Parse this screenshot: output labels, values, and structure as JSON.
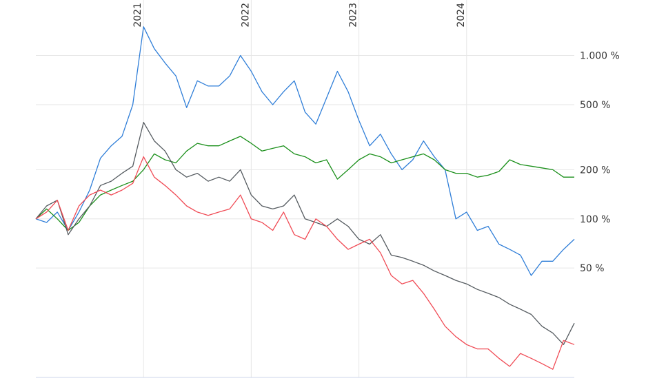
{
  "chart_data": {
    "type": "line",
    "yscale": "log",
    "grid": true,
    "xlim": [
      2020.0,
      2025.0
    ],
    "xticks": [
      2021,
      2022,
      2023,
      2024
    ],
    "ylim": [
      10.7,
      1800
    ],
    "yticks": [
      {
        "value": 1000,
        "label": "1.000 %"
      },
      {
        "value": 500,
        "label": "500 %"
      },
      {
        "value": 200,
        "label": "200 %"
      },
      {
        "value": 100,
        "label": "100 %"
      },
      {
        "value": 50,
        "label": "50 %"
      }
    ],
    "x": [
      2020.0,
      2020.1,
      2020.2,
      2020.3,
      2020.4,
      2020.5,
      2020.6,
      2020.7,
      2020.8,
      2020.9,
      2021.0,
      2021.1,
      2021.2,
      2021.3,
      2021.4,
      2021.5,
      2021.6,
      2021.7,
      2021.8,
      2021.9,
      2022.0,
      2022.1,
      2022.2,
      2022.3,
      2022.4,
      2022.5,
      2022.6,
      2022.7,
      2022.8,
      2022.9,
      2023.0,
      2023.1,
      2023.2,
      2023.3,
      2023.4,
      2023.5,
      2023.6,
      2023.7,
      2023.8,
      2023.9,
      2024.0,
      2024.1,
      2024.2,
      2024.3,
      2024.4,
      2024.5,
      2024.6,
      2024.7,
      2024.8,
      2024.9,
      2025.0
    ],
    "series": [
      {
        "color": "#2f7ed8",
        "values": [
          100,
          95,
          110,
          85,
          110,
          150,
          235,
          280,
          320,
          500,
          1500,
          1100,
          900,
          750,
          480,
          700,
          650,
          650,
          750,
          1000,
          800,
          600,
          500,
          600,
          700,
          450,
          380,
          550,
          800,
          600,
          400,
          280,
          330,
          250,
          200,
          230,
          300,
          240,
          200,
          100,
          110,
          85,
          90,
          70,
          65,
          60,
          45,
          55,
          55,
          65,
          75
        ]
      },
      {
        "color": "#1a8f1a",
        "values": [
          100,
          115,
          100,
          85,
          95,
          120,
          140,
          150,
          160,
          170,
          200,
          250,
          230,
          220,
          260,
          290,
          280,
          280,
          300,
          320,
          290,
          260,
          270,
          280,
          250,
          240,
          220,
          230,
          175,
          200,
          230,
          250,
          240,
          220,
          230,
          240,
          250,
          230,
          200,
          190,
          190,
          180,
          185,
          195,
          230,
          215,
          210,
          205,
          200,
          180,
          180
        ]
      },
      {
        "color": "#555b60",
        "values": [
          100,
          120,
          130,
          80,
          100,
          120,
          160,
          170,
          190,
          210,
          390,
          300,
          260,
          200,
          180,
          190,
          170,
          180,
          170,
          200,
          140,
          120,
          115,
          120,
          140,
          100,
          95,
          90,
          100,
          90,
          75,
          70,
          80,
          60,
          58,
          55,
          52,
          48,
          45,
          42,
          40,
          37,
          35,
          33,
          30,
          28,
          26,
          22,
          20,
          17,
          23
        ]
      },
      {
        "color": "#f04b55",
        "values": [
          100,
          110,
          130,
          85,
          120,
          140,
          150,
          140,
          150,
          165,
          240,
          180,
          160,
          140,
          120,
          110,
          105,
          110,
          115,
          140,
          100,
          95,
          85,
          110,
          80,
          75,
          100,
          90,
          75,
          65,
          70,
          75,
          62,
          45,
          40,
          42,
          35,
          28,
          22,
          19,
          17,
          16,
          16,
          14,
          12.5,
          15,
          14,
          13,
          12,
          18,
          17
        ]
      }
    ]
  }
}
